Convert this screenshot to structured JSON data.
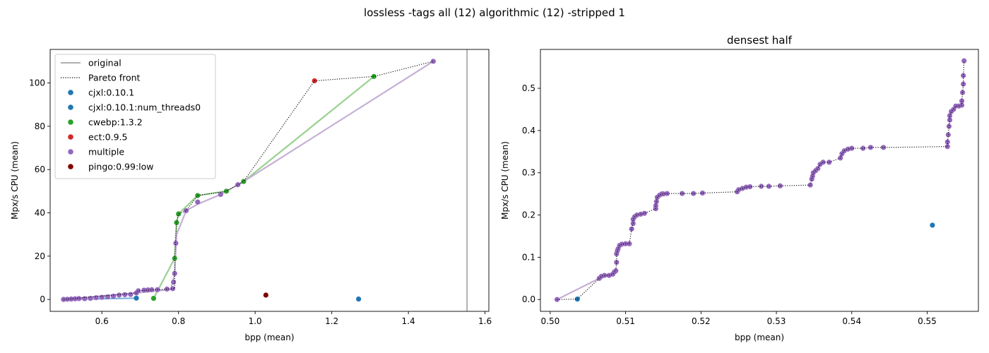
{
  "figure": {
    "suptitle": "lossless -tags all (12) algorithmic (12) -stripped 1"
  },
  "chart_data": [
    {
      "type": "scatter",
      "title": "",
      "xlabel": "bpp (mean)",
      "ylabel": "Mpx/s CPU (mean)",
      "xlim": [
        0.465,
        1.61
      ],
      "ylim": [
        -5.5,
        115.5
      ],
      "xticks": [
        0.6,
        0.8,
        1.0,
        1.2,
        1.4,
        1.6
      ],
      "xtick_labels": [
        "0.6",
        "0.8",
        "1.0",
        "1.2",
        "1.4",
        "1.6"
      ],
      "yticks": [
        0,
        20,
        40,
        60,
        80,
        100
      ],
      "ytick_labels": [
        "0",
        "20",
        "40",
        "60",
        "80",
        "100"
      ],
      "original_line_x": 1.553,
      "legend_location": "upper-left",
      "legend": [
        {
          "label": "original",
          "kind": "line",
          "color": "#808080"
        },
        {
          "label": "Pareto front",
          "kind": "dotted",
          "color": "#000000"
        },
        {
          "label": "cjxl:0.10.1",
          "kind": "marker",
          "color": "#1f77b4"
        },
        {
          "label": "cjxl:0.10.1:num_threads0",
          "kind": "marker",
          "color": "#1f77b4"
        },
        {
          "label": "cwebp:1.3.2",
          "kind": "marker",
          "color": "#2ca02c"
        },
        {
          "label": "ect:0.9.5",
          "kind": "marker",
          "color": "#d62728"
        },
        {
          "label": "multiple",
          "kind": "marker",
          "color": "#9467bd"
        },
        {
          "label": "pingo:0.99:low",
          "kind": "marker",
          "color": "#800000"
        }
      ],
      "series": [
        {
          "name": "cjxl:0.10.1",
          "color": "#1f77b4",
          "line_color": "#7fb3e0",
          "points": [
            [
              0.5,
              0.0
            ],
            [
              0.69,
              0.6
            ],
            [
              1.27,
              0.2
            ]
          ],
          "line": [
            [
              0.5,
              0.0
            ],
            [
              0.69,
              0.6
            ]
          ]
        },
        {
          "name": "cwebp:1.3.2",
          "color": "#2ca02c",
          "line_color": "#99d18f",
          "points": [
            [
              0.735,
              0.5
            ],
            [
              0.79,
              19
            ],
            [
              0.795,
              35.5
            ],
            [
              0.8,
              39.5
            ],
            [
              0.85,
              48
            ],
            [
              0.925,
              50
            ],
            [
              0.97,
              54.5
            ],
            [
              1.31,
              103
            ]
          ],
          "line": [
            [
              0.735,
              0.5
            ],
            [
              0.79,
              19
            ],
            [
              0.795,
              35.5
            ],
            [
              0.8,
              39.5
            ],
            [
              0.85,
              48
            ],
            [
              0.925,
              50
            ],
            [
              0.97,
              54.5
            ],
            [
              1.31,
              103
            ]
          ]
        },
        {
          "name": "ect:0.9.5",
          "color": "#d62728",
          "points": [
            [
              1.155,
              101
            ]
          ]
        },
        {
          "name": "multiple",
          "color": "#9467bd",
          "line_color": "#c5b0d5",
          "points": [
            [
              0.5,
              0.0
            ],
            [
              0.51,
              0.1
            ],
            [
              0.52,
              0.2
            ],
            [
              0.53,
              0.3
            ],
            [
              0.54,
              0.4
            ],
            [
              0.555,
              0.36
            ],
            [
              0.57,
              0.5
            ],
            [
              0.585,
              0.8
            ],
            [
              0.6,
              1.0
            ],
            [
              0.615,
              1.2
            ],
            [
              0.63,
              1.5
            ],
            [
              0.645,
              2.0
            ],
            [
              0.66,
              2.2
            ],
            [
              0.675,
              2.3
            ],
            [
              0.69,
              3.0
            ],
            [
              0.695,
              4.0
            ],
            [
              0.71,
              4.3
            ],
            [
              0.72,
              4.4
            ],
            [
              0.73,
              4.5
            ],
            [
              0.745,
              4.5
            ],
            [
              0.77,
              4.8
            ],
            [
              0.785,
              5.0
            ],
            [
              0.787,
              8.0
            ],
            [
              0.79,
              12.0
            ],
            [
              0.793,
              26.0
            ],
            [
              0.82,
              41.0
            ],
            [
              0.85,
              45.0
            ],
            [
              0.91,
              48.5
            ],
            [
              0.955,
              53
            ],
            [
              1.465,
              110
            ]
          ],
          "line": [
            [
              0.5,
              0.0
            ],
            [
              0.69,
              3.0
            ],
            [
              0.78,
              4.6
            ],
            [
              0.79,
              12
            ],
            [
              0.795,
              30
            ],
            [
              0.82,
              41
            ],
            [
              0.85,
              44
            ],
            [
              0.91,
              48.5
            ],
            [
              0.97,
              54.5
            ],
            [
              1.465,
              110
            ]
          ]
        },
        {
          "name": "pingo:0.99:low",
          "color": "#800000",
          "points": [
            [
              1.028,
              2.0
            ]
          ]
        }
      ],
      "pareto_front": [
        [
          0.5,
          0.0
        ],
        [
          0.69,
          3.0
        ],
        [
          0.695,
          4.0
        ],
        [
          0.79,
          5.0
        ],
        [
          0.79,
          19
        ],
        [
          0.795,
          35.5
        ],
        [
          0.8,
          39.5
        ],
        [
          0.82,
          41
        ],
        [
          0.85,
          48
        ],
        [
          0.925,
          50
        ],
        [
          0.97,
          54.5
        ],
        [
          1.155,
          101
        ],
        [
          1.31,
          103
        ],
        [
          1.465,
          110
        ]
      ]
    },
    {
      "type": "scatter",
      "title": "densest half",
      "xlabel": "bpp (mean)",
      "ylabel": "Mpx/s CPU (mean)",
      "xlim": [
        0.4987,
        0.5568
      ],
      "ylim": [
        -0.028,
        0.592
      ],
      "xticks": [
        0.5,
        0.51,
        0.52,
        0.53,
        0.54,
        0.55
      ],
      "xtick_labels": [
        "0.50",
        "0.51",
        "0.52",
        "0.53",
        "0.54",
        "0.55"
      ],
      "yticks": [
        0.0,
        0.1,
        0.2,
        0.3,
        0.4,
        0.5
      ],
      "ytick_labels": [
        "0.0",
        "0.1",
        "0.2",
        "0.3",
        "0.4",
        "0.5"
      ],
      "series": [
        {
          "name": "cjxl:0.10.1",
          "color": "#1f77b4",
          "line_color": "#7fb3e0",
          "points": [
            [
              0.5036,
              0.001
            ],
            [
              0.5507,
              0.176
            ]
          ],
          "line": [
            [
              0.5036,
              0.001
            ]
          ]
        },
        {
          "name": "multiple",
          "color": "#9467bd",
          "line_color": "#c5b0d5",
          "points": [
            [
              0.5009,
              0.0
            ],
            [
              0.5065,
              0.05
            ],
            [
              0.5068,
              0.055
            ],
            [
              0.5072,
              0.057
            ],
            [
              0.5078,
              0.057
            ],
            [
              0.5083,
              0.06
            ],
            [
              0.5085,
              0.065
            ],
            [
              0.5087,
              0.068
            ],
            [
              0.5088,
              0.088
            ],
            [
              0.5088,
              0.108
            ],
            [
              0.5089,
              0.115
            ],
            [
              0.509,
              0.12
            ],
            [
              0.5092,
              0.128
            ],
            [
              0.5095,
              0.131
            ],
            [
              0.51,
              0.132
            ],
            [
              0.5105,
              0.132
            ],
            [
              0.5108,
              0.167
            ],
            [
              0.511,
              0.18
            ],
            [
              0.511,
              0.19
            ],
            [
              0.5112,
              0.196
            ],
            [
              0.5115,
              0.2
            ],
            [
              0.512,
              0.202
            ],
            [
              0.5125,
              0.204
            ],
            [
              0.514,
              0.215
            ],
            [
              0.514,
              0.222
            ],
            [
              0.5141,
              0.232
            ],
            [
              0.5142,
              0.242
            ],
            [
              0.5145,
              0.247
            ],
            [
              0.5148,
              0.25
            ],
            [
              0.515,
              0.25
            ],
            [
              0.5155,
              0.251
            ],
            [
              0.5175,
              0.251
            ],
            [
              0.519,
              0.251
            ],
            [
              0.5202,
              0.252
            ],
            [
              0.5248,
              0.255
            ],
            [
              0.525,
              0.26
            ],
            [
              0.5255,
              0.263
            ],
            [
              0.526,
              0.266
            ],
            [
              0.5265,
              0.267
            ],
            [
              0.528,
              0.268
            ],
            [
              0.529,
              0.268
            ],
            [
              0.5305,
              0.269
            ],
            [
              0.5345,
              0.271
            ],
            [
              0.5347,
              0.285
            ],
            [
              0.5348,
              0.292
            ],
            [
              0.5349,
              0.3
            ],
            [
              0.5352,
              0.305
            ],
            [
              0.5355,
              0.31
            ],
            [
              0.5358,
              0.32
            ],
            [
              0.5362,
              0.325
            ],
            [
              0.537,
              0.325
            ],
            [
              0.5385,
              0.335
            ],
            [
              0.5387,
              0.345
            ],
            [
              0.539,
              0.352
            ],
            [
              0.5395,
              0.356
            ],
            [
              0.54,
              0.358
            ],
            [
              0.5415,
              0.358
            ],
            [
              0.5425,
              0.36
            ],
            [
              0.5442,
              0.36
            ],
            [
              0.5527,
              0.362
            ],
            [
              0.5527,
              0.373
            ],
            [
              0.5528,
              0.39
            ],
            [
              0.5529,
              0.41
            ],
            [
              0.553,
              0.425
            ],
            [
              0.553,
              0.435
            ],
            [
              0.5532,
              0.445
            ],
            [
              0.5535,
              0.45
            ],
            [
              0.5538,
              0.458
            ],
            [
              0.5542,
              0.458
            ],
            [
              0.5546,
              0.46
            ],
            [
              0.5546,
              0.47
            ],
            [
              0.5547,
              0.49
            ],
            [
              0.5548,
              0.51
            ],
            [
              0.5548,
              0.53
            ],
            [
              0.5549,
              0.565
            ]
          ],
          "line": [
            [
              0.5009,
              0.0
            ],
            [
              0.5065,
              0.05
            ]
          ]
        }
      ],
      "pareto_front": [
        [
          0.5009,
          0.0
        ],
        [
          0.5036,
          0.001
        ],
        [
          0.5065,
          0.05
        ],
        [
          0.5068,
          0.055
        ],
        [
          0.5072,
          0.057
        ],
        [
          0.5078,
          0.057
        ],
        [
          0.5083,
          0.06
        ],
        [
          0.5085,
          0.065
        ],
        [
          0.5087,
          0.068
        ],
        [
          0.5088,
          0.088
        ],
        [
          0.5088,
          0.108
        ],
        [
          0.5089,
          0.115
        ],
        [
          0.509,
          0.12
        ],
        [
          0.5092,
          0.128
        ],
        [
          0.5095,
          0.131
        ],
        [
          0.51,
          0.132
        ],
        [
          0.5105,
          0.132
        ],
        [
          0.5108,
          0.167
        ],
        [
          0.511,
          0.18
        ],
        [
          0.511,
          0.19
        ],
        [
          0.5112,
          0.196
        ],
        [
          0.5115,
          0.2
        ],
        [
          0.512,
          0.202
        ],
        [
          0.5125,
          0.204
        ],
        [
          0.514,
          0.215
        ],
        [
          0.514,
          0.222
        ],
        [
          0.5141,
          0.232
        ],
        [
          0.5142,
          0.242
        ],
        [
          0.5145,
          0.247
        ],
        [
          0.5148,
          0.25
        ],
        [
          0.515,
          0.25
        ],
        [
          0.5155,
          0.251
        ],
        [
          0.5175,
          0.251
        ],
        [
          0.519,
          0.251
        ],
        [
          0.5202,
          0.252
        ],
        [
          0.5248,
          0.255
        ],
        [
          0.525,
          0.26
        ],
        [
          0.5255,
          0.263
        ],
        [
          0.526,
          0.266
        ],
        [
          0.5265,
          0.267
        ],
        [
          0.528,
          0.268
        ],
        [
          0.529,
          0.268
        ],
        [
          0.5305,
          0.269
        ],
        [
          0.5345,
          0.271
        ],
        [
          0.5347,
          0.285
        ],
        [
          0.5348,
          0.292
        ],
        [
          0.5349,
          0.3
        ],
        [
          0.5352,
          0.305
        ],
        [
          0.5355,
          0.31
        ],
        [
          0.5358,
          0.32
        ],
        [
          0.5362,
          0.325
        ],
        [
          0.537,
          0.325
        ],
        [
          0.5385,
          0.335
        ],
        [
          0.5387,
          0.345
        ],
        [
          0.539,
          0.352
        ],
        [
          0.5395,
          0.356
        ],
        [
          0.54,
          0.358
        ],
        [
          0.5415,
          0.358
        ],
        [
          0.5425,
          0.36
        ],
        [
          0.5442,
          0.36
        ],
        [
          0.5527,
          0.362
        ],
        [
          0.5527,
          0.373
        ],
        [
          0.5528,
          0.39
        ],
        [
          0.5529,
          0.41
        ],
        [
          0.553,
          0.425
        ],
        [
          0.553,
          0.435
        ],
        [
          0.5532,
          0.445
        ],
        [
          0.5535,
          0.45
        ],
        [
          0.5538,
          0.458
        ],
        [
          0.5542,
          0.458
        ],
        [
          0.5546,
          0.46
        ],
        [
          0.5546,
          0.47
        ],
        [
          0.5547,
          0.49
        ],
        [
          0.5548,
          0.51
        ],
        [
          0.5548,
          0.53
        ],
        [
          0.5549,
          0.565
        ]
      ]
    }
  ]
}
